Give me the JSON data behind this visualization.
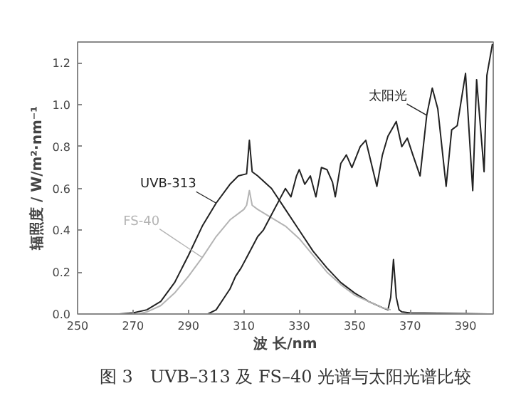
{
  "chart_data": {
    "type": "line",
    "title": "图 3　UVB–313 及 FS–40 光谱与太阳光谱比较",
    "xlabel": "波 长/nm",
    "ylabel": "辐照度 / W/m²·nm⁻¹",
    "xlim": [
      250,
      400
    ],
    "ylim": [
      0,
      1.3
    ],
    "xticks": [
      250,
      270,
      290,
      310,
      330,
      350,
      370,
      390
    ],
    "yticks": [
      {
        "value": 0,
        "label": "0.0"
      },
      {
        "value": 0.2,
        "label": "0.2"
      },
      {
        "value": 0.4,
        "label": "0.4"
      },
      {
        "value": 0.6,
        "label": "0.6"
      },
      {
        "value": 0.8,
        "label": "0.8"
      },
      {
        "value": 1.0,
        "label": "1.0"
      },
      {
        "value": 1.2,
        "label": "1.2"
      }
    ],
    "grid": false,
    "legend": false,
    "marker": "none",
    "line_style": "solid",
    "series": [
      {
        "name": "UVB-313",
        "color": "#222222",
        "x": [
          265,
          270,
          275,
          280,
          285,
          290,
          295,
          300,
          305,
          308,
          311,
          312,
          313,
          315,
          320,
          325,
          330,
          335,
          340,
          345,
          350,
          355,
          360,
          362,
          363,
          364,
          365,
          366,
          367,
          370,
          380,
          390,
          398
        ],
        "values": [
          0,
          0.005,
          0.02,
          0.06,
          0.15,
          0.28,
          0.42,
          0.53,
          0.62,
          0.66,
          0.67,
          0.83,
          0.68,
          0.66,
          0.6,
          0.5,
          0.4,
          0.3,
          0.22,
          0.15,
          0.1,
          0.06,
          0.03,
          0.02,
          0.08,
          0.26,
          0.08,
          0.02,
          0.01,
          0.005,
          0.003,
          0.002,
          0
        ]
      },
      {
        "name": "FS-40",
        "color": "#b4b4b4",
        "x": [
          272,
          275,
          280,
          285,
          290,
          295,
          300,
          305,
          310,
          311,
          312,
          313,
          315,
          320,
          325,
          330,
          335,
          340,
          345,
          350,
          355,
          360,
          363
        ],
        "values": [
          0,
          0.01,
          0.04,
          0.1,
          0.18,
          0.27,
          0.37,
          0.45,
          0.5,
          0.52,
          0.59,
          0.52,
          0.5,
          0.46,
          0.42,
          0.36,
          0.28,
          0.2,
          0.14,
          0.09,
          0.06,
          0.03,
          0.02
        ]
      },
      {
        "name": "太阳光",
        "color": "#222222",
        "x": [
          294,
          297,
          300,
          303,
          305,
          307,
          309,
          311,
          313,
          315,
          317,
          319,
          321,
          323,
          325,
          327,
          329,
          330,
          332,
          334,
          336,
          338,
          340,
          342,
          343,
          345,
          347,
          349,
          350.5,
          352,
          354,
          356,
          358,
          360,
          362,
          365,
          367,
          369,
          371,
          373.6,
          376,
          378,
          380,
          383,
          385,
          387,
          390,
          392.6,
          394,
          396.7,
          397.7,
          399.7
        ],
        "values": [
          0,
          0,
          0.02,
          0.08,
          0.12,
          0.18,
          0.22,
          0.27,
          0.32,
          0.37,
          0.4,
          0.45,
          0.5,
          0.55,
          0.6,
          0.56,
          0.66,
          0.69,
          0.62,
          0.66,
          0.56,
          0.7,
          0.69,
          0.63,
          0.56,
          0.72,
          0.76,
          0.7,
          0.75,
          0.8,
          0.83,
          0.72,
          0.61,
          0.76,
          0.85,
          0.92,
          0.8,
          0.84,
          0.76,
          0.66,
          0.95,
          1.08,
          0.98,
          0.61,
          0.88,
          0.9,
          1.15,
          0.59,
          1.12,
          0.68,
          1.14,
          1.29
        ]
      }
    ]
  }
}
